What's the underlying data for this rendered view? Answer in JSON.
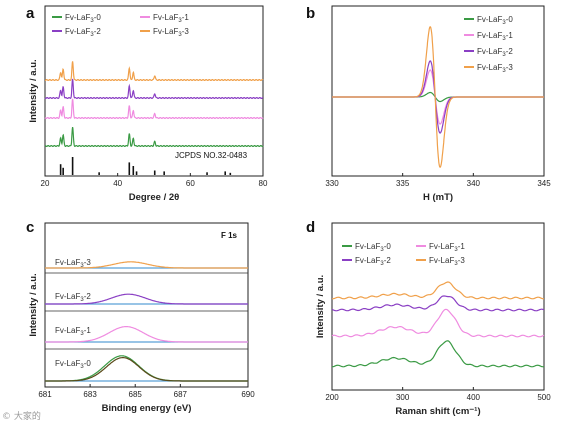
{
  "colors": {
    "Fv-LaF3-0": "#3a9a44",
    "Fv-LaF3-1": "#ef8be0",
    "Fv-LaF3-2": "#8a3fc4",
    "Fv-LaF3-3": "#f0a04a"
  },
  "watermark": "© 大家的",
  "chart_data": [
    {
      "id": "a",
      "panel": "a",
      "type": "line",
      "xlabel": "Degree / 2θ",
      "ylabel": "Intensity / a.u.",
      "xlim": [
        20,
        80
      ],
      "xticks": [
        20,
        40,
        60,
        80
      ],
      "legend_position": "top",
      "series": [
        {
          "name": "Fv-LaF3-0",
          "peaks": [
            [
              24.3,
              0.35
            ],
            [
              25.0,
              0.5
            ],
            [
              27.6,
              0.85
            ],
            [
              43.2,
              0.55
            ],
            [
              44.3,
              0.35
            ],
            [
              50.2,
              0.2
            ]
          ]
        },
        {
          "name": "Fv-LaF3-1",
          "peaks": [
            [
              24.3,
              0.35
            ],
            [
              25.0,
              0.5
            ],
            [
              27.6,
              0.85
            ],
            [
              43.2,
              0.55
            ],
            [
              44.3,
              0.35
            ],
            [
              50.2,
              0.2
            ]
          ]
        },
        {
          "name": "Fv-LaF3-2",
          "peaks": [
            [
              24.3,
              0.35
            ],
            [
              25.0,
              0.5
            ],
            [
              27.6,
              0.85
            ],
            [
              43.2,
              0.55
            ],
            [
              44.3,
              0.35
            ],
            [
              50.2,
              0.2
            ]
          ]
        },
        {
          "name": "Fv-LaF3-3",
          "peaks": [
            [
              24.3,
              0.35
            ],
            [
              25.0,
              0.5
            ],
            [
              27.6,
              0.85
            ],
            [
              43.2,
              0.55
            ],
            [
              44.3,
              0.35
            ],
            [
              50.2,
              0.2
            ]
          ]
        }
      ],
      "reference": {
        "label": "JCPDS NO.32-0483",
        "positions": [
          24.3,
          25.0,
          27.6,
          34.9,
          43.2,
          44.3,
          45.2,
          50.2,
          52.8,
          64.6,
          69.6,
          71.0
        ],
        "heights": [
          0.6,
          0.4,
          1.0,
          0.15,
          0.7,
          0.5,
          0.2,
          0.25,
          0.2,
          0.15,
          0.2,
          0.12
        ]
      }
    },
    {
      "id": "b",
      "panel": "b",
      "type": "line",
      "xlabel": "H (mT)",
      "ylabel": "",
      "xlim": [
        330,
        345
      ],
      "xticks": [
        330,
        335,
        340,
        345
      ],
      "legend_position": "top-right",
      "series": [
        {
          "name": "Fv-LaF3-0",
          "amplitude": 0.05
        },
        {
          "name": "Fv-LaF3-1",
          "amplitude": 0.3
        },
        {
          "name": "Fv-LaF3-2",
          "amplitude": 0.4
        },
        {
          "name": "Fv-LaF3-3",
          "amplitude": 0.78
        }
      ]
    },
    {
      "id": "c",
      "panel": "c",
      "type": "line",
      "xlabel": "Binding energy (eV)",
      "ylabel": "Intensity / a.u.",
      "xlim": [
        681,
        690
      ],
      "xticks": [
        681,
        683,
        685,
        687,
        690
      ],
      "annotation": "F 1s",
      "series": [
        {
          "name": "Fv-LaF3-0",
          "center": 684.4,
          "amplitude": 0.9
        },
        {
          "name": "Fv-LaF3-1",
          "center": 684.6,
          "amplitude": 0.55
        },
        {
          "name": "Fv-LaF3-2",
          "center": 684.7,
          "amplitude": 0.35
        },
        {
          "name": "Fv-LaF3-3",
          "center": 684.8,
          "amplitude": 0.22
        }
      ]
    },
    {
      "id": "d",
      "panel": "d",
      "type": "line",
      "xlabel": "Raman shift (cm⁻¹)",
      "ylabel": "Intensity / a.u.",
      "xlim": [
        200,
        500
      ],
      "xticks": [
        200,
        300,
        400,
        500
      ],
      "legend_position": "top",
      "series": [
        {
          "name": "Fv-LaF3-0",
          "peaks": [
            [
              290,
              0.3
            ],
            [
              362,
              0.95
            ]
          ]
        },
        {
          "name": "Fv-LaF3-1",
          "peaks": [
            [
              290,
              0.35
            ],
            [
              362,
              1.0
            ]
          ]
        },
        {
          "name": "Fv-LaF3-2",
          "peaks": [
            [
              290,
              0.2
            ],
            [
              362,
              0.55
            ]
          ]
        },
        {
          "name": "Fv-LaF3-3",
          "peaks": [
            [
              290,
              0.15
            ],
            [
              362,
              0.6
            ]
          ]
        }
      ]
    }
  ]
}
